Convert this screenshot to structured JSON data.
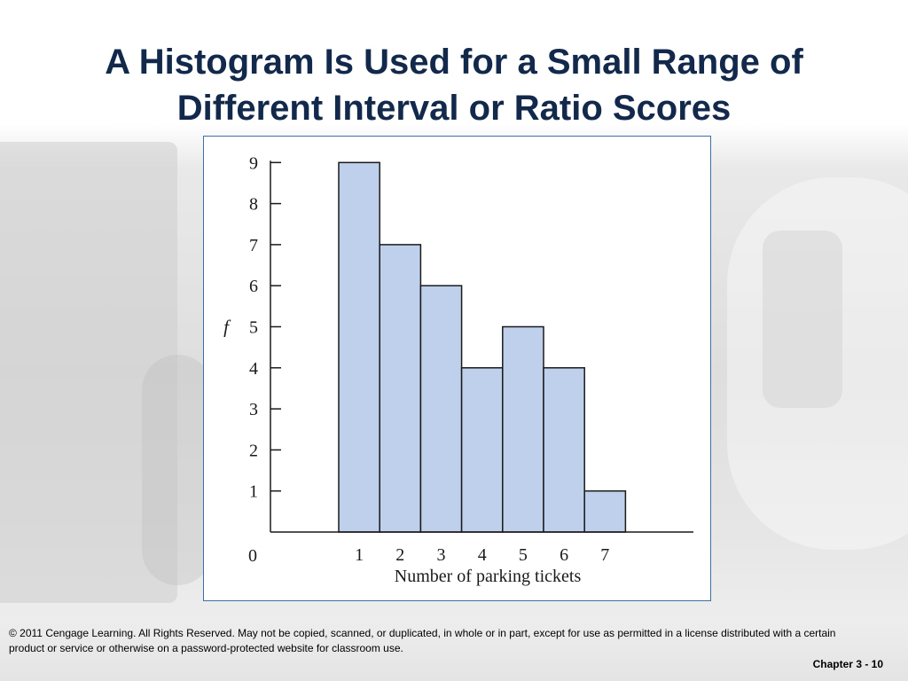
{
  "slide": {
    "title_line1": "A Histogram Is Used for a Small Range of",
    "title_line2": "Different Interval or Ratio Scores",
    "copyright": "© 2011 Cengage Learning. All Rights Reserved. May not be copied, scanned, or duplicated, in whole or in part, except for use as permitted in a license distributed with a certain product or service or otherwise on a password-protected website for classroom use.",
    "slide_number": "Chapter 3 - 10"
  },
  "chart_data": {
    "type": "bar",
    "categories": [
      "1",
      "2",
      "3",
      "4",
      "5",
      "6",
      "7"
    ],
    "values": [
      9,
      7,
      6,
      4,
      5,
      4,
      1
    ],
    "title": "",
    "xlabel": "Number of parking tickets",
    "ylabel": "f",
    "ylim": [
      0,
      9
    ],
    "yticks": [
      "1",
      "2",
      "3",
      "4",
      "5",
      "6",
      "7",
      "8",
      "9"
    ],
    "origin_label": "0",
    "grid": false,
    "bar_color": "#bed0ec",
    "bar_edge_color": "#1a1a1a"
  }
}
